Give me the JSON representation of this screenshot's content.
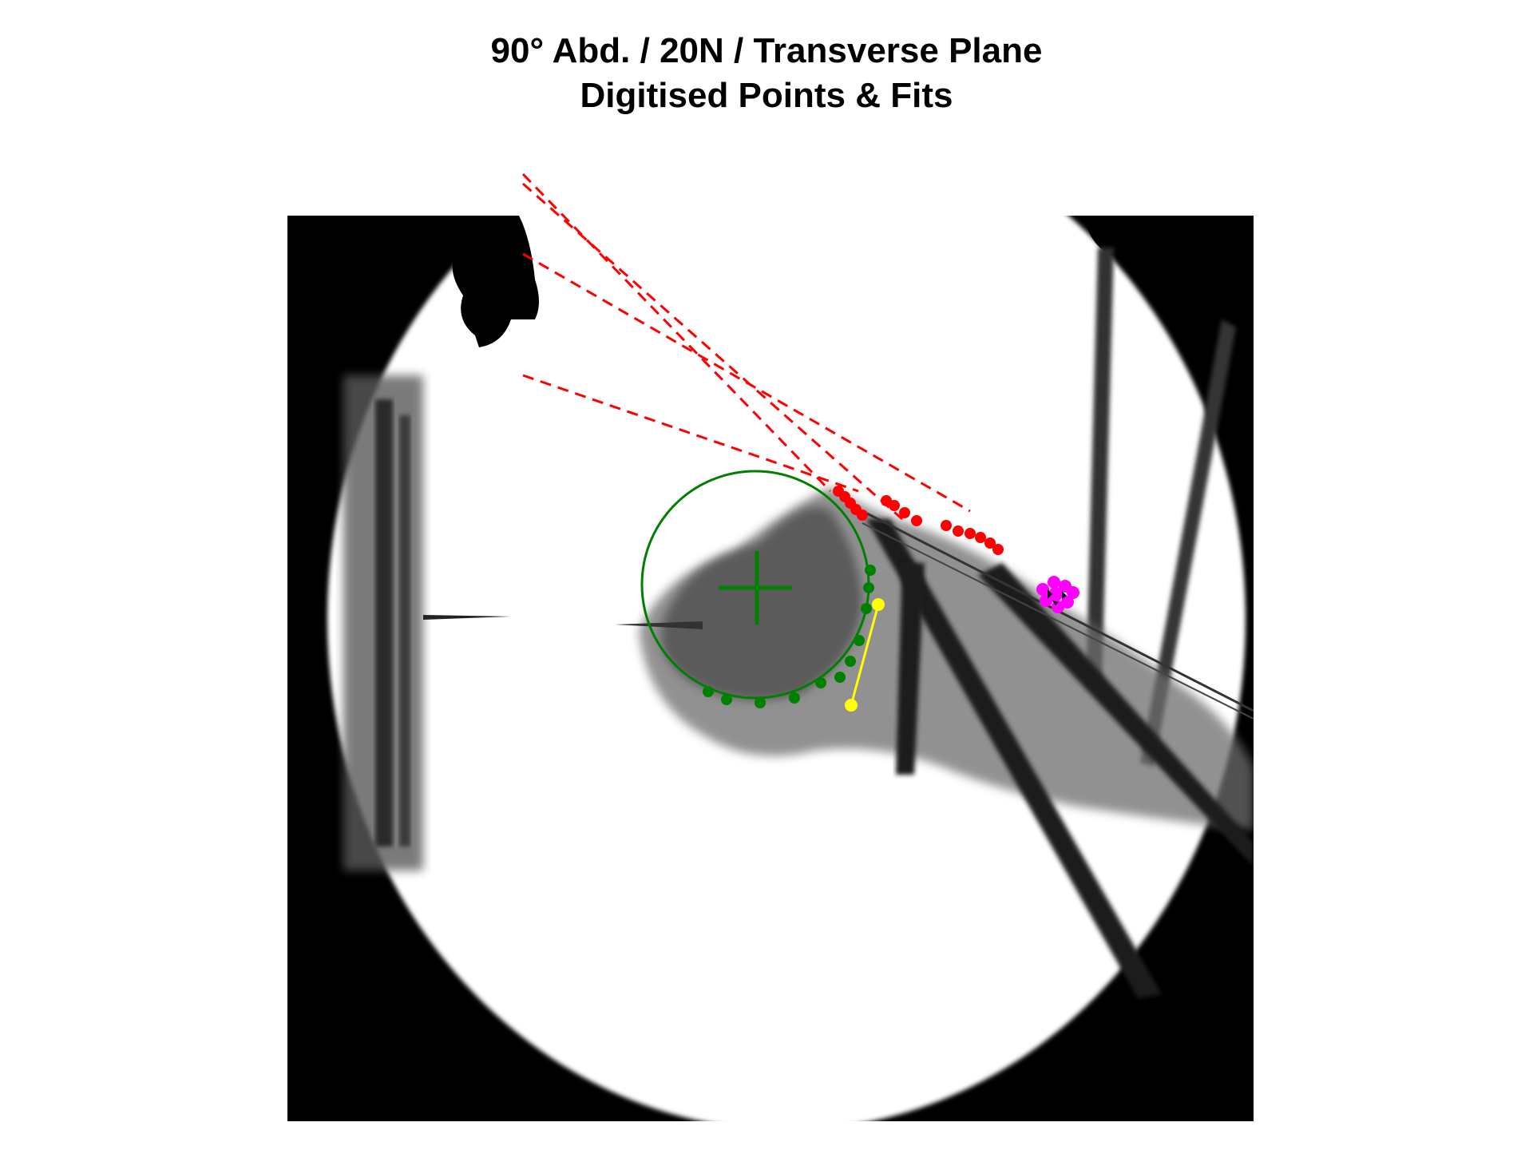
{
  "title": {
    "line1": "90° Abd. / 20N / Transverse Plane",
    "line2": "Digitised Points & Fits"
  },
  "colors": {
    "humeral_head_fit": "#008000",
    "tangent_lines": "#ff0000",
    "muscle_line": "#ffff00",
    "marker": "#ff00ff",
    "image_background": "#000000"
  },
  "image_description_tags": [
    "fluoroscopy-image",
    "shoulder-joint",
    "transverse-plane"
  ]
}
